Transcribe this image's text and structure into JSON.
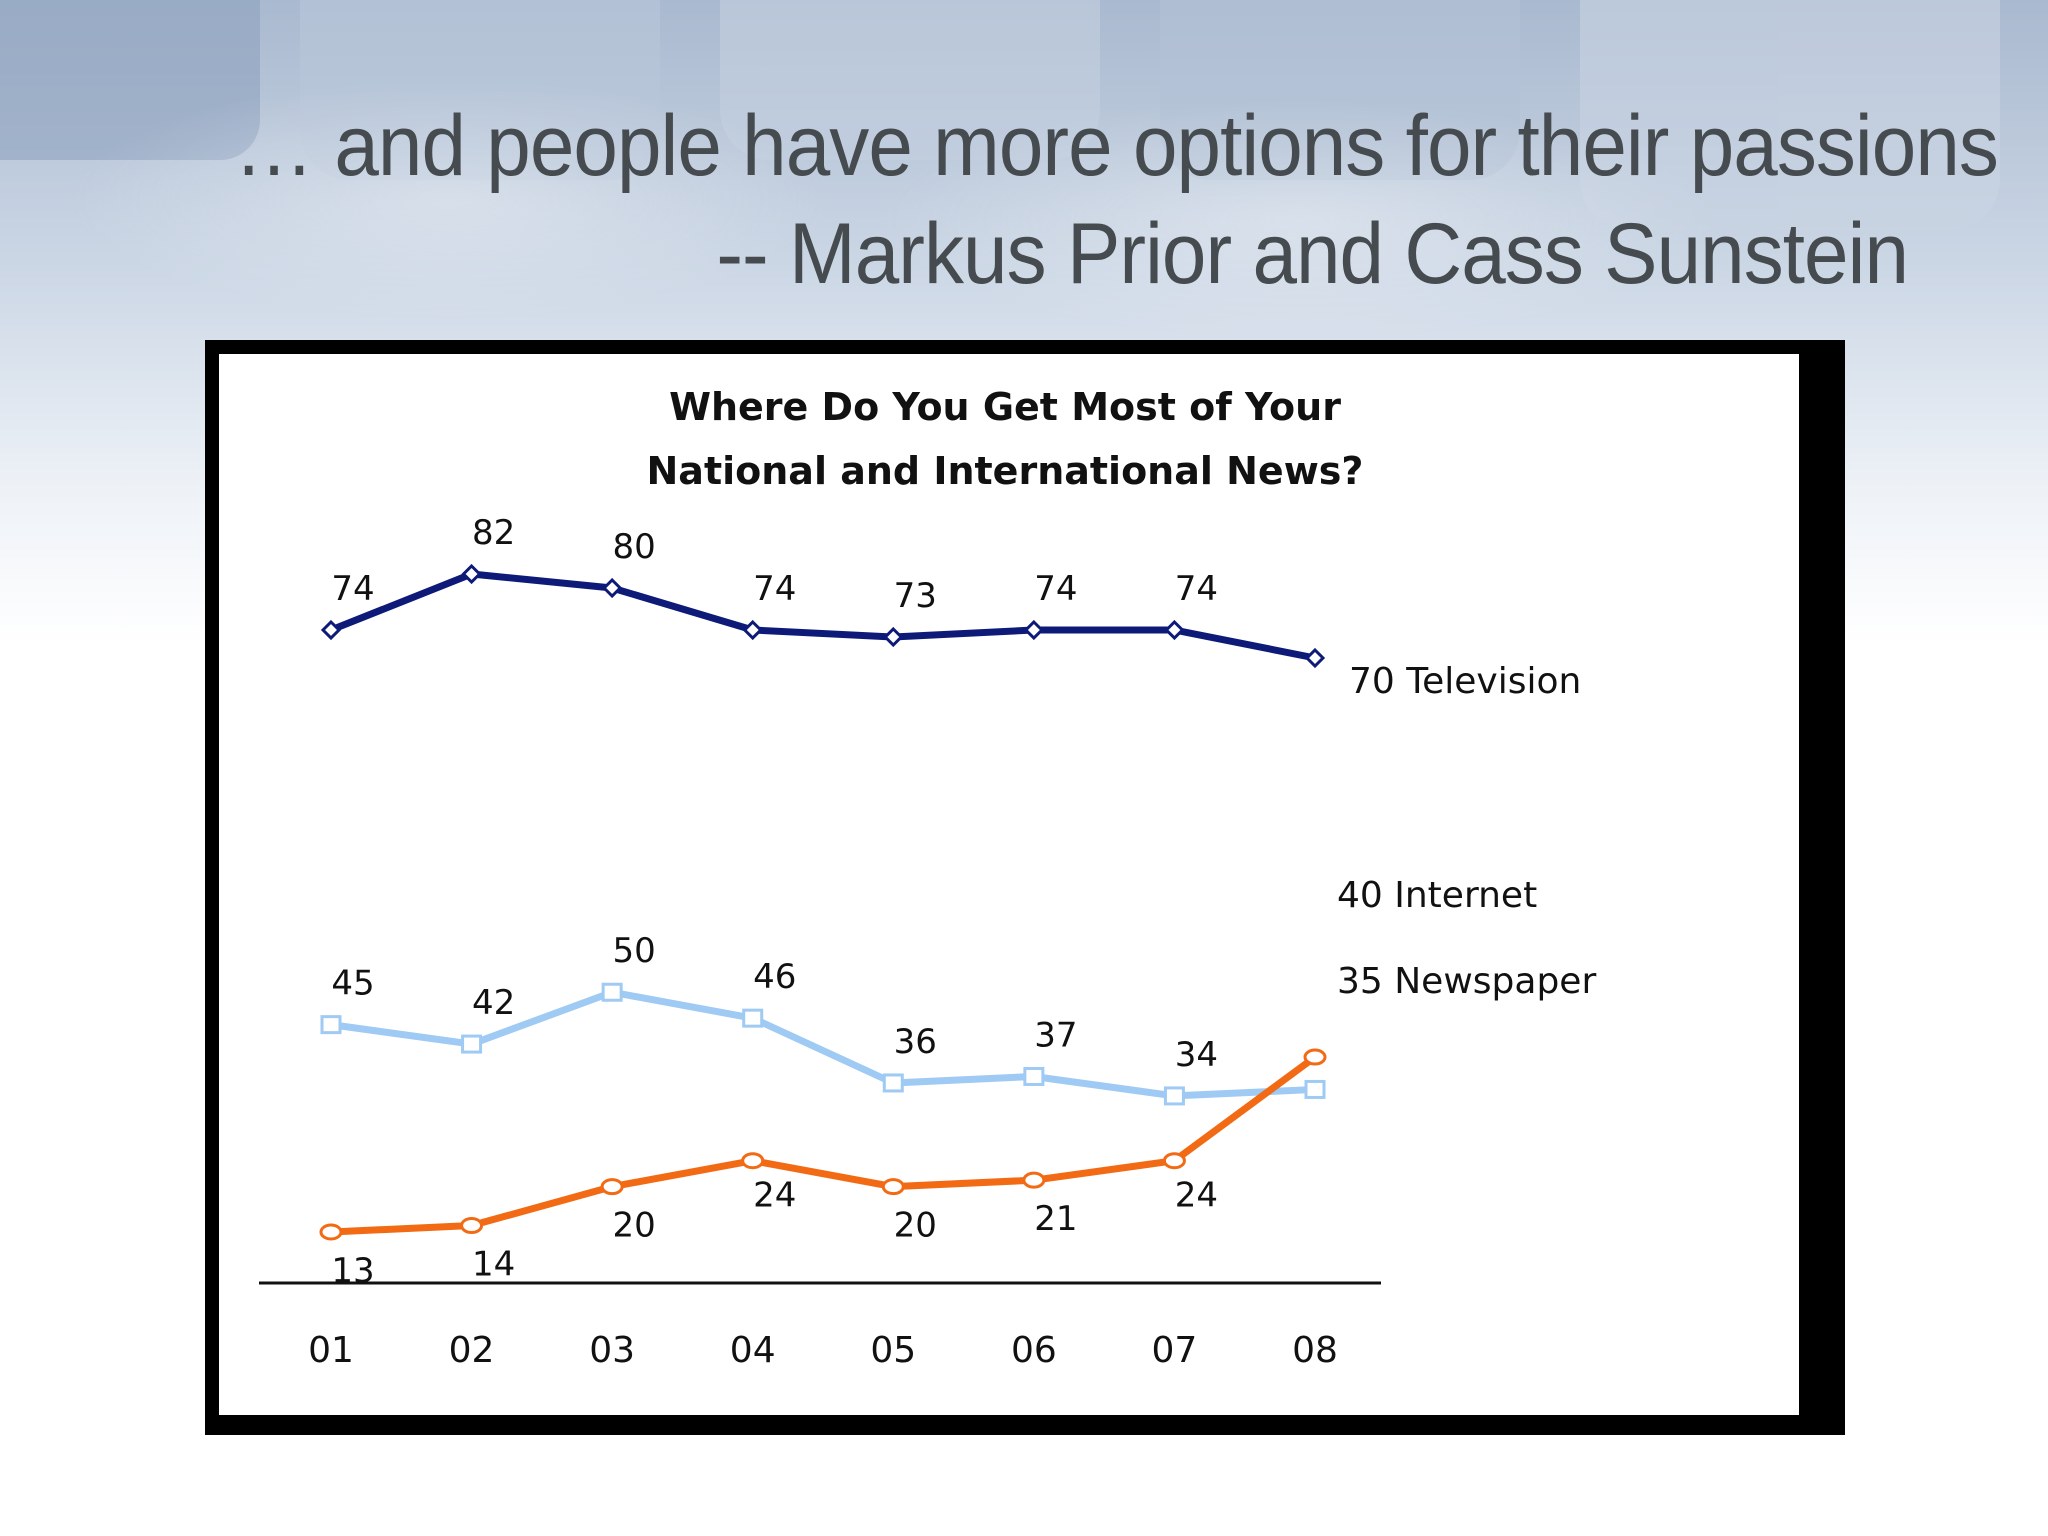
{
  "slide": {
    "headline": "… and people have more options for their passions",
    "attribution": "-- Markus Prior and Cass Sunstein"
  },
  "chart_data": {
    "type": "line",
    "title": "Where Do You Get Most of Your",
    "subtitle": "National and International News?",
    "categories": [
      "01",
      "02",
      "03",
      "04",
      "05",
      "06",
      "07",
      "08"
    ],
    "series": [
      {
        "name": "Television",
        "values": [
          74,
          82,
          80,
          74,
          73,
          74,
          74,
          70
        ],
        "color": "#0d1a78",
        "marker": "diamond"
      },
      {
        "name": "Newspaper",
        "values": [
          45,
          42,
          50,
          46,
          36,
          37,
          34,
          35
        ],
        "color": "#9fcaf3",
        "marker": "square"
      },
      {
        "name": "Internet",
        "values": [
          13,
          14,
          20,
          24,
          20,
          21,
          24,
          40
        ],
        "color": "#f26a14",
        "marker": "circle"
      }
    ],
    "end_labels": [
      "70 Television",
      "35 Newspaper",
      "40 Internet"
    ],
    "xlabel": "",
    "ylabel": "",
    "ylim": [
      0,
      90
    ],
    "grid": false,
    "legend": "inline-right"
  }
}
